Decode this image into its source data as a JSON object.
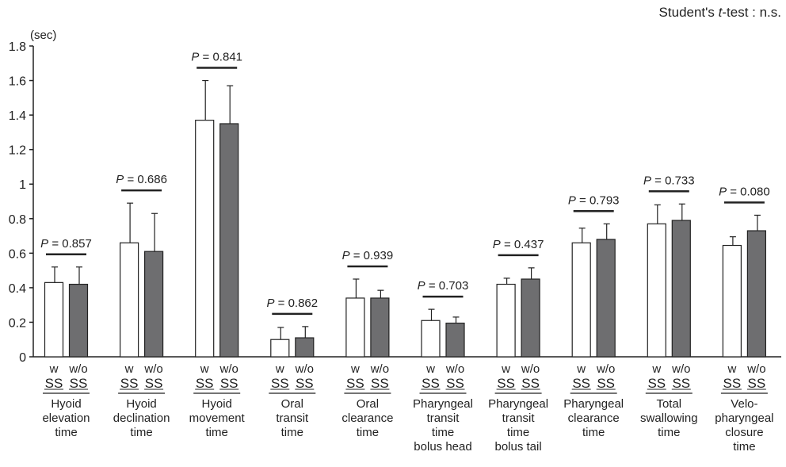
{
  "note": {
    "prefix": "Student's ",
    "italic": "t",
    "suffix": "-test : n.s."
  },
  "chart_data": {
    "type": "bar",
    "ylabel": "(sec)",
    "ylim": [
      0,
      1.8
    ],
    "yticks": [
      "0",
      "0.2",
      "0.4",
      "0.6",
      "0.8",
      "1",
      "1.2",
      "1.4",
      "1.6",
      "1.8"
    ],
    "grid": false,
    "series": [
      {
        "name": "w SS",
        "color": "#ffffff"
      },
      {
        "name": "w/o SS",
        "color": "#6e6e70"
      }
    ],
    "groups": [
      {
        "label": [
          "Hyoid",
          "elevation",
          "time"
        ],
        "p": "= 0.857",
        "values": [
          0.43,
          0.42
        ],
        "errors": [
          0.09,
          0.1
        ]
      },
      {
        "label": [
          "Hyoid",
          "declination",
          "time"
        ],
        "p": "= 0.686",
        "values": [
          0.66,
          0.61
        ],
        "errors": [
          0.23,
          0.22
        ]
      },
      {
        "label": [
          "Hyoid",
          "movement",
          "time"
        ],
        "p": "= 0.841",
        "values": [
          1.37,
          1.35
        ],
        "errors": [
          0.23,
          0.22
        ]
      },
      {
        "label": [
          "Oral",
          "transit",
          "time"
        ],
        "p": "= 0.862",
        "values": [
          0.1,
          0.11
        ],
        "errors": [
          0.07,
          0.065
        ]
      },
      {
        "label": [
          "Oral",
          "clearance",
          "time"
        ],
        "p": "= 0.939",
        "values": [
          0.34,
          0.34
        ],
        "errors": [
          0.11,
          0.045
        ]
      },
      {
        "label": [
          "Pharyngeal",
          "transit",
          "time",
          "bolus head"
        ],
        "p": "= 0.703",
        "values": [
          0.21,
          0.195
        ],
        "errors": [
          0.065,
          0.035
        ]
      },
      {
        "label": [
          "Pharyngeal",
          "transit",
          "time",
          "bolus tail"
        ],
        "p": "= 0.437",
        "values": [
          0.42,
          0.45
        ],
        "errors": [
          0.035,
          0.065
        ]
      },
      {
        "label": [
          "Pharyngeal",
          "clearance",
          "time"
        ],
        "p": "= 0.793",
        "values": [
          0.66,
          0.68
        ],
        "errors": [
          0.085,
          0.09
        ]
      },
      {
        "label": [
          "Total",
          "swallowing",
          "time"
        ],
        "p": "= 0.733",
        "values": [
          0.77,
          0.79
        ],
        "errors": [
          0.11,
          0.095
        ]
      },
      {
        "label": [
          "Velo-",
          "pharyngeal",
          "closure",
          "time"
        ],
        "p": "= 0.080",
        "values": [
          0.645,
          0.73
        ],
        "errors": [
          0.05,
          0.09
        ]
      }
    ],
    "bar_labels_top": [
      "w",
      "w/o"
    ],
    "bar_labels_bottom": [
      "SS",
      "SS"
    ],
    "p_prefix": "P"
  }
}
